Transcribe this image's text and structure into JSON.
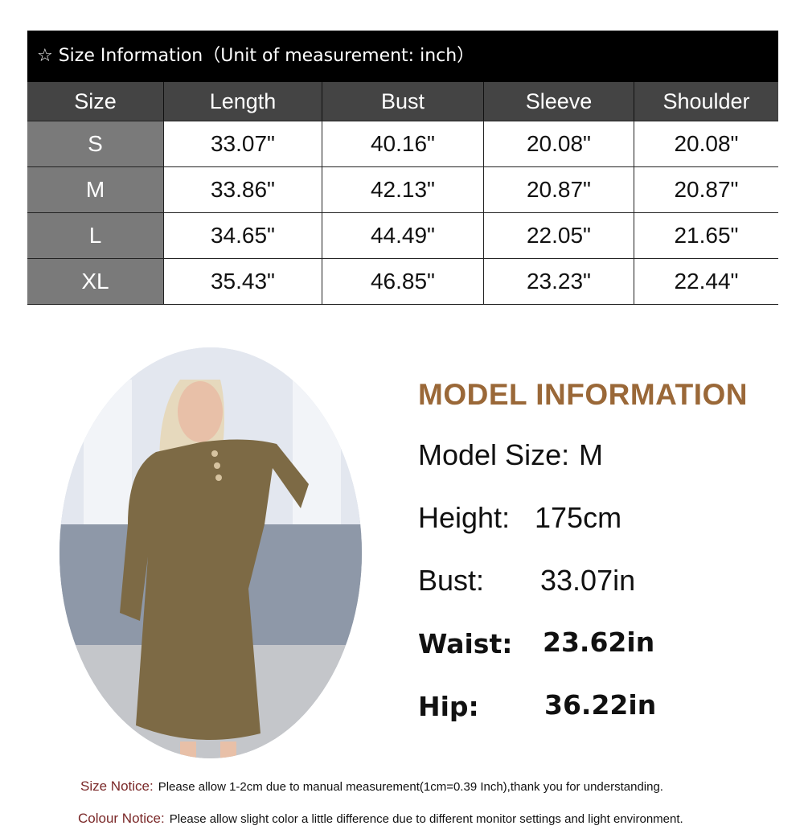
{
  "size_table": {
    "title": "☆ Size Information（Unit of measurement: inch）",
    "headers": [
      "Size",
      "Length",
      "Bust",
      "Sleeve",
      "Shoulder"
    ],
    "rows": [
      [
        "S",
        "33.07\"",
        "40.16\"",
        "20.08\"",
        "20.08\""
      ],
      [
        "M",
        "33.86\"",
        "42.13\"",
        "20.87\"",
        "20.87\""
      ],
      [
        "L",
        "34.65\"",
        "44.49\"",
        "22.05\"",
        "21.65\""
      ],
      [
        "XL",
        "35.43\"",
        "46.85\"",
        "23.23\"",
        "22.44\""
      ]
    ]
  },
  "model_info": {
    "title": "MODEL INFORMATION",
    "lines": [
      {
        "label": "Model Size:",
        "value": "M"
      },
      {
        "label": "Height:",
        "value": "175cm"
      },
      {
        "label": "Bust:",
        "value": "33.07in"
      },
      {
        "label": "Waist:",
        "value": "23.62in"
      },
      {
        "label": "Hip:",
        "value": "36.22in"
      }
    ]
  },
  "notices": [
    {
      "label": "Size Notice:",
      "text": "Please allow 1-2cm due to manual measurement(1cm=0.39 Inch),thank you for understanding."
    },
    {
      "label": "Colour Notice:",
      "text": "Please allow slight color  a little difference due to different monitor settings and light environment."
    }
  ],
  "colors": {
    "title_bar": "#000000",
    "header": "#444444",
    "size_col": "#7a7a7a",
    "model_title": "#9a6838",
    "notice_label": "#7a2828",
    "dress": "#7d6a45"
  }
}
